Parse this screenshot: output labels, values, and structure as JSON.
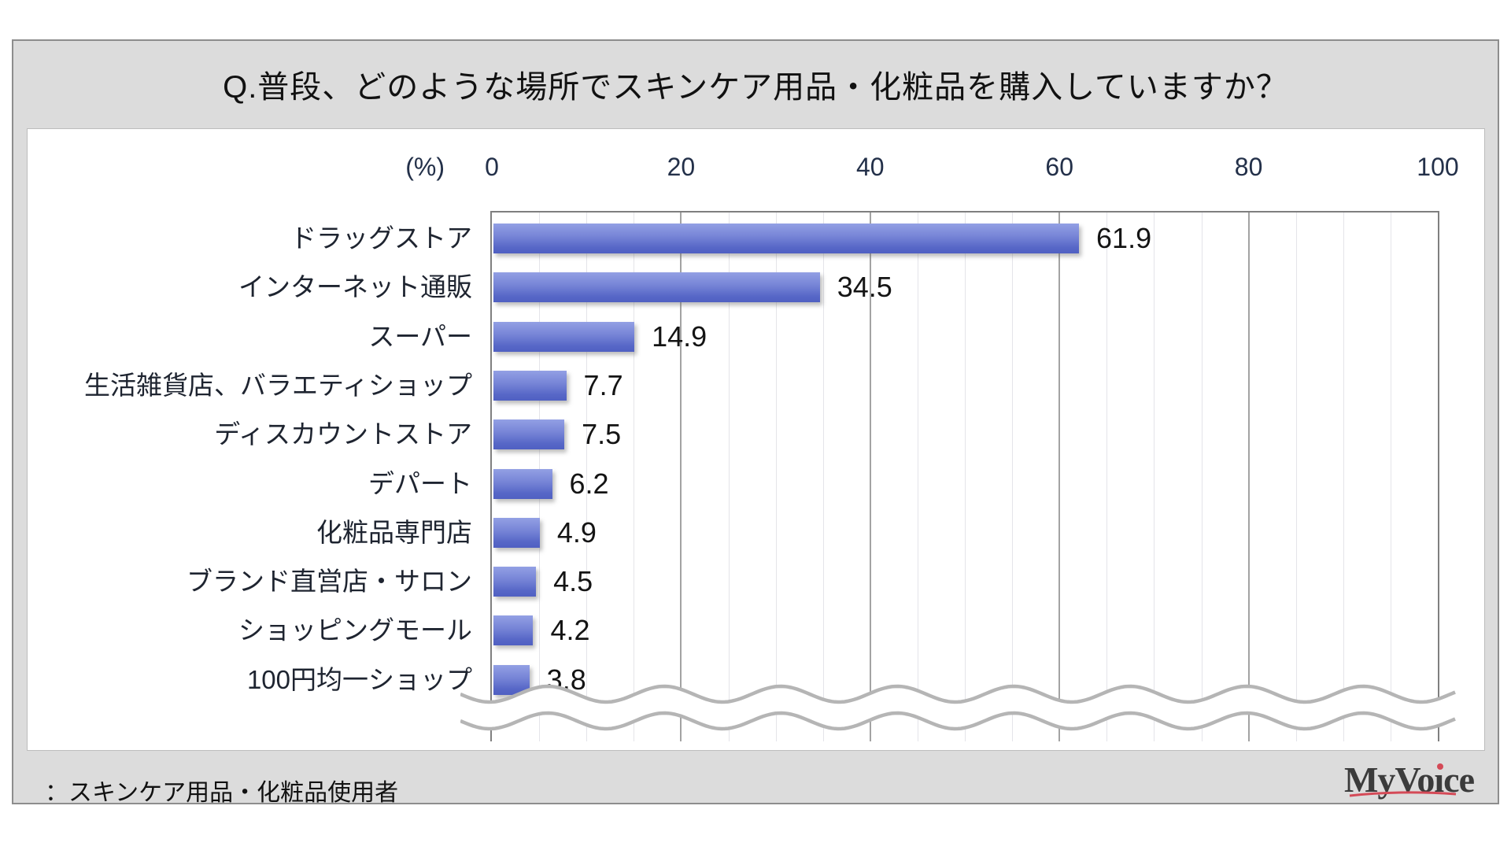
{
  "title": "Q.普段、どのような場所でスキンケア用品・化粧品を購入していますか？",
  "chart_data": {
    "type": "bar",
    "orientation": "horizontal",
    "title": "Q.普段、どのような場所でスキンケア用品・化粧品を購入していますか？",
    "unit_label": "(%)",
    "categories": [
      "ドラッグストア",
      "インターネット通販",
      "スーパー",
      "生活雑貨店、バラエティショップ",
      "ディスカウントストア",
      "デパート",
      "化粧品専門店",
      "ブランド直営店・サロン",
      "ショッピングモール",
      "100円均一ショップ"
    ],
    "values": [
      61.9,
      34.5,
      14.9,
      7.7,
      7.5,
      6.2,
      4.9,
      4.5,
      4.2,
      3.8
    ],
    "value_labels": [
      "61.9",
      "34.5",
      "14.9",
      "7.7",
      "7.5",
      "6.2",
      "4.9",
      "4.5",
      "4.2",
      "3.8"
    ],
    "xlim": [
      0,
      100
    ],
    "x_ticks": [
      0,
      20,
      40,
      60,
      80,
      100
    ],
    "minor_grid_step": 5,
    "major_grid_step": 20,
    "grid": true,
    "legend": "none",
    "truncated_bottom": true,
    "bar_color_top": "#93a0e4",
    "bar_color_bottom": "#5060c2"
  },
  "footer": {
    "note": "：スキンケア用品・化粧品使用者"
  },
  "logo": {
    "text": "MyVoice",
    "accent_color": "#d44a57"
  },
  "colors": {
    "card_background": "#dcdcdc",
    "panel_background": "#ffffff",
    "plot_border": "#7f7f7f",
    "major_grid": "#a3a3a3",
    "minor_grid": "#e4e4e9"
  }
}
